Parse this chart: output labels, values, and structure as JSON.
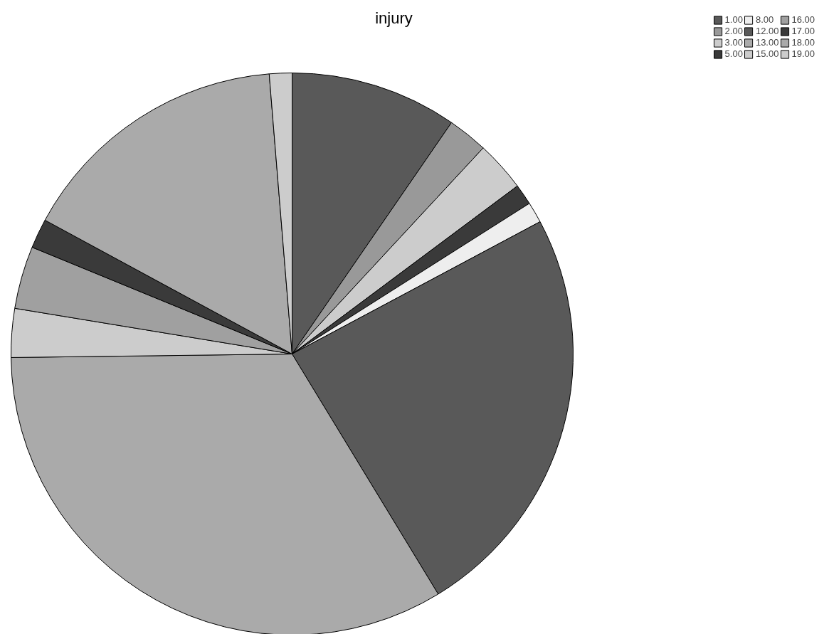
{
  "chart_data": {
    "type": "pie",
    "title": "injury",
    "categories": [
      "1.00",
      "2.00",
      "3.00",
      "5.00",
      "8.00",
      "12.00",
      "13.00",
      "15.00",
      "16.00",
      "17.00",
      "18.00",
      "19.00"
    ],
    "values": [
      9.6,
      2.3,
      2.9,
      1.2,
      1.2,
      24.1,
      33.5,
      2.8,
      3.6,
      1.7,
      15.8,
      1.3
    ],
    "colors": [
      "#595959",
      "#999999",
      "#cccccc",
      "#3a3a3a",
      "#eeeeee",
      "#595959",
      "#aaaaaa",
      "#cccccc",
      "#a0a0a0",
      "#3a3a3a",
      "#aaaaaa",
      "#cccccc"
    ],
    "legend": "top right"
  }
}
